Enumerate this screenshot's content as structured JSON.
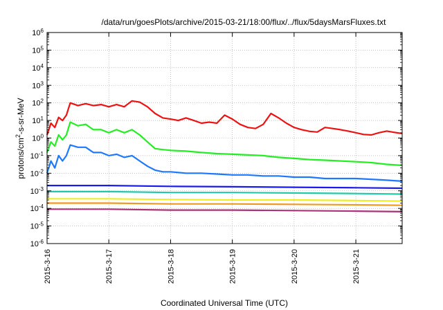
{
  "chart_data": {
    "type": "line",
    "title": "/data/run/goesPlots/archive/2015-03-21/18:00/flux/../flux/5daysMarsFluxes.txt",
    "xlabel": "Coordinated Universal Time (UTC)",
    "ylabel": {
      "base": "protons/cm",
      "sup": "2",
      "rest": "-s-sr-MeV"
    },
    "y_scale": "log",
    "ylim": [
      1e-06,
      1000000.0
    ],
    "y_ticks": [
      {
        "value": 1e-06,
        "base": "10",
        "exp": "-6"
      },
      {
        "value": 1e-05,
        "base": "10",
        "exp": "-5"
      },
      {
        "value": 0.0001,
        "base": "10",
        "exp": "-4"
      },
      {
        "value": 0.001,
        "base": "10",
        "exp": "-3"
      },
      {
        "value": 0.01,
        "base": "10",
        "exp": "-2"
      },
      {
        "value": 0.1,
        "base": "10",
        "exp": "-1"
      },
      {
        "value": 1,
        "base": "10",
        "exp": "0"
      },
      {
        "value": 10,
        "base": "10",
        "exp": "1"
      },
      {
        "value": 100,
        "base": "10",
        "exp": "2"
      },
      {
        "value": 1000,
        "base": "10",
        "exp": "3"
      },
      {
        "value": 10000,
        "base": "10",
        "exp": "4"
      },
      {
        "value": 100000,
        "base": "10",
        "exp": "5"
      },
      {
        "value": 1000000,
        "base": "10",
        "exp": "6"
      }
    ],
    "x_ticks": [
      "2015-3-16",
      "2015-3-17",
      "2015-3-18",
      "2015-3-19",
      "2015-3-20",
      "2015-3-21"
    ],
    "x_end": "2015-3-21 18:00",
    "grid": true,
    "series": [
      {
        "color": "#ee1111",
        "x": [
          "2015-3-16 00:00",
          "2015-3-16 01:30",
          "2015-3-16 03:00",
          "2015-3-16 04:30",
          "2015-3-16 06:00",
          "2015-3-16 07:30",
          "2015-3-16 09:00",
          "2015-3-16 12:00",
          "2015-3-16 15:00",
          "2015-3-16 18:00",
          "2015-3-16 21:00",
          "2015-3-17 00:00",
          "2015-3-17 03:00",
          "2015-3-17 06:00",
          "2015-3-17 09:00",
          "2015-3-17 12:00",
          "2015-3-17 15:00",
          "2015-3-17 18:00",
          "2015-3-17 21:00",
          "2015-3-18 00:00",
          "2015-3-18 03:00",
          "2015-3-18 06:00",
          "2015-3-18 09:00",
          "2015-3-18 12:00",
          "2015-3-18 15:00",
          "2015-3-18 18:00",
          "2015-3-18 21:00",
          "2015-3-19 00:00",
          "2015-3-19 03:00",
          "2015-3-19 06:00",
          "2015-3-19 09:00",
          "2015-3-19 12:00",
          "2015-3-19 15:00",
          "2015-3-19 18:00",
          "2015-3-19 21:00",
          "2015-3-20 00:00",
          "2015-3-20 03:00",
          "2015-3-20 06:00",
          "2015-3-20 09:00",
          "2015-3-20 12:00",
          "2015-3-20 15:00",
          "2015-3-20 18:00",
          "2015-3-20 21:00",
          "2015-3-21 00:00",
          "2015-3-21 03:00",
          "2015-3-21 06:00",
          "2015-3-21 09:00",
          "2015-3-21 12:00",
          "2015-3-21 15:00",
          "2015-3-21 18:00"
        ],
        "y": [
          1.5,
          7,
          4,
          15,
          10,
          20,
          100,
          70,
          90,
          70,
          80,
          60,
          80,
          60,
          130,
          110,
          60,
          25,
          14,
          12,
          10,
          14,
          10,
          7,
          8,
          7,
          20,
          12,
          6,
          4,
          3.5,
          6,
          25,
          14,
          7,
          4,
          3,
          2.4,
          2.2,
          4,
          3.5,
          3,
          2.5,
          2,
          1.6,
          1.5,
          2,
          2.5,
          2.1,
          1.8
        ]
      },
      {
        "color": "#22ee22",
        "x": [
          "2015-3-16 00:00",
          "2015-3-16 01:30",
          "2015-3-16 03:00",
          "2015-3-16 04:30",
          "2015-3-16 06:00",
          "2015-3-16 07:30",
          "2015-3-16 09:00",
          "2015-3-16 12:00",
          "2015-3-16 15:00",
          "2015-3-16 18:00",
          "2015-3-16 21:00",
          "2015-3-17 00:00",
          "2015-3-17 03:00",
          "2015-3-17 06:00",
          "2015-3-17 09:00",
          "2015-3-17 12:00",
          "2015-3-17 15:00",
          "2015-3-17 18:00",
          "2015-3-17 21:00",
          "2015-3-18 00:00",
          "2015-3-18 06:00",
          "2015-3-18 12:00",
          "2015-3-18 18:00",
          "2015-3-19 00:00",
          "2015-3-19 06:00",
          "2015-3-19 12:00",
          "2015-3-19 18:00",
          "2015-3-20 00:00",
          "2015-3-20 06:00",
          "2015-3-20 12:00",
          "2015-3-20 18:00",
          "2015-3-21 00:00",
          "2015-3-21 06:00",
          "2015-3-21 12:00",
          "2015-3-21 18:00"
        ],
        "y": [
          0.15,
          0.6,
          0.35,
          1.5,
          0.8,
          1.5,
          8,
          5,
          6,
          3,
          3,
          2,
          3,
          2,
          3,
          1.5,
          0.6,
          0.25,
          0.22,
          0.2,
          0.18,
          0.15,
          0.13,
          0.12,
          0.11,
          0.1,
          0.08,
          0.07,
          0.06,
          0.055,
          0.05,
          0.045,
          0.04,
          0.032,
          0.028
        ]
      },
      {
        "color": "#1e78ff",
        "x": [
          "2015-3-16 00:00",
          "2015-3-16 01:30",
          "2015-3-16 03:00",
          "2015-3-16 04:30",
          "2015-3-16 06:00",
          "2015-3-16 07:30",
          "2015-3-16 09:00",
          "2015-3-16 12:00",
          "2015-3-16 15:00",
          "2015-3-16 18:00",
          "2015-3-16 21:00",
          "2015-3-17 00:00",
          "2015-3-17 03:00",
          "2015-3-17 06:00",
          "2015-3-17 09:00",
          "2015-3-17 12:00",
          "2015-3-17 15:00",
          "2015-3-17 18:00",
          "2015-3-17 21:00",
          "2015-3-18 00:00",
          "2015-3-18 06:00",
          "2015-3-18 12:00",
          "2015-3-18 18:00",
          "2015-3-19 00:00",
          "2015-3-19 06:00",
          "2015-3-19 12:00",
          "2015-3-19 18:00",
          "2015-3-20 00:00",
          "2015-3-20 06:00",
          "2015-3-20 12:00",
          "2015-3-20 18:00",
          "2015-3-21 00:00",
          "2015-3-21 06:00",
          "2015-3-21 12:00",
          "2015-3-21 18:00"
        ],
        "y": [
          0.01,
          0.05,
          0.02,
          0.1,
          0.05,
          0.1,
          0.4,
          0.3,
          0.3,
          0.15,
          0.15,
          0.1,
          0.12,
          0.08,
          0.1,
          0.05,
          0.025,
          0.015,
          0.012,
          0.012,
          0.01,
          0.01,
          0.009,
          0.008,
          0.008,
          0.007,
          0.007,
          0.006,
          0.006,
          0.005,
          0.005,
          0.005,
          0.0045,
          0.004,
          0.0035
        ]
      },
      {
        "color": "#1a1aee",
        "x": [
          "2015-3-16 00:00",
          "2015-3-17 00:00",
          "2015-3-18 00:00",
          "2015-3-19 00:00",
          "2015-3-20 00:00",
          "2015-3-21 00:00",
          "2015-3-21 18:00"
        ],
        "y": [
          0.002,
          0.002,
          0.0018,
          0.0017,
          0.0016,
          0.0015,
          0.0014
        ]
      },
      {
        "color": "#22c8aa",
        "x": [
          "2015-3-16 00:00",
          "2015-3-17 00:00",
          "2015-3-18 00:00",
          "2015-3-19 00:00",
          "2015-3-20 00:00",
          "2015-3-21 00:00",
          "2015-3-21 18:00"
        ],
        "y": [
          0.0009,
          0.0009,
          0.0008,
          0.0008,
          0.00075,
          0.0007,
          0.00065
        ]
      },
      {
        "color": "#eeee22",
        "x": [
          "2015-3-16 00:00",
          "2015-3-17 00:00",
          "2015-3-18 00:00",
          "2015-3-19 00:00",
          "2015-3-20 00:00",
          "2015-3-21 00:00",
          "2015-3-21 18:00"
        ],
        "y": [
          0.00035,
          0.00035,
          0.00032,
          0.0003,
          0.0003,
          0.00028,
          0.00026
        ]
      },
      {
        "color": "#ee9922",
        "x": [
          "2015-3-16 00:00",
          "2015-3-17 00:00",
          "2015-3-18 00:00",
          "2015-3-19 00:00",
          "2015-3-20 00:00",
          "2015-3-21 00:00",
          "2015-3-21 18:00"
        ],
        "y": [
          0.0002,
          0.0002,
          0.00018,
          0.00018,
          0.00017,
          0.00016,
          0.00015
        ]
      },
      {
        "color": "#aa3377",
        "x": [
          "2015-3-16 00:00",
          "2015-3-17 00:00",
          "2015-3-18 00:00",
          "2015-3-19 00:00",
          "2015-3-20 00:00",
          "2015-3-21 00:00",
          "2015-3-21 18:00"
        ],
        "y": [
          9e-05,
          9e-05,
          8e-05,
          8e-05,
          7.5e-05,
          7e-05,
          6.5e-05
        ]
      }
    ]
  }
}
